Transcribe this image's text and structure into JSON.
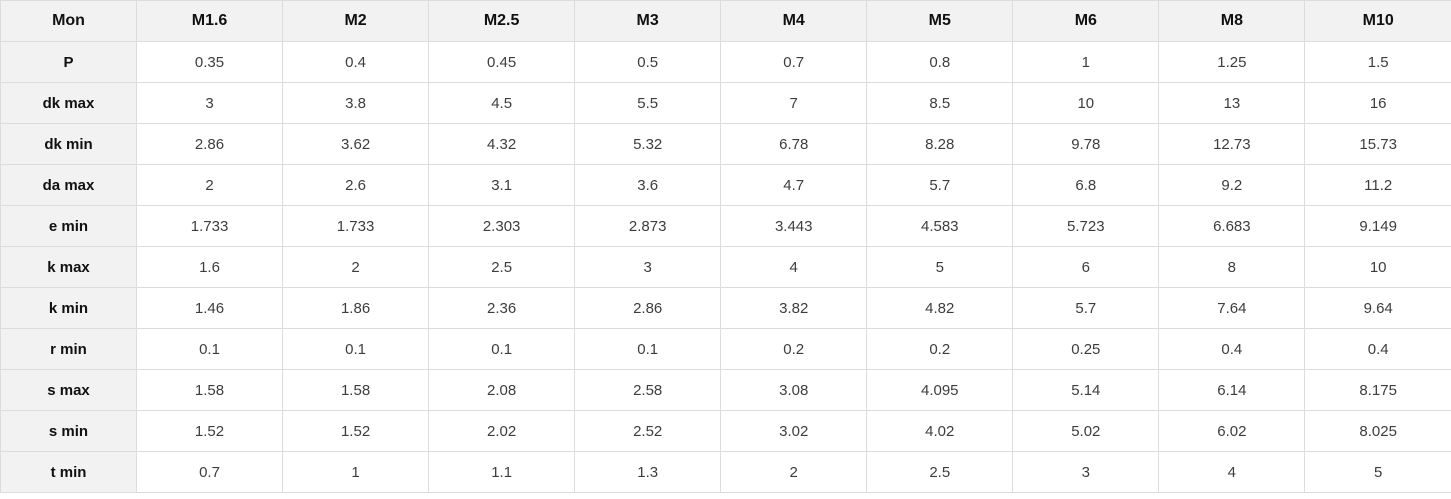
{
  "chart_data": {
    "type": "table",
    "title": "",
    "columns": [
      "Mon",
      "M1.6",
      "M2",
      "M2.5",
      "M3",
      "M4",
      "M5",
      "M6",
      "M8",
      "M10"
    ],
    "rows": [
      {
        "label": "P",
        "values": [
          "0.35",
          "0.4",
          "0.45",
          "0.5",
          "0.7",
          "0.8",
          "1",
          "1.25",
          "1.5"
        ]
      },
      {
        "label": "dk max",
        "values": [
          "3",
          "3.8",
          "4.5",
          "5.5",
          "7",
          "8.5",
          "10",
          "13",
          "16"
        ]
      },
      {
        "label": "dk min",
        "values": [
          "2.86",
          "3.62",
          "4.32",
          "5.32",
          "6.78",
          "8.28",
          "9.78",
          "12.73",
          "15.73"
        ]
      },
      {
        "label": "da max",
        "values": [
          "2",
          "2.6",
          "3.1",
          "3.6",
          "4.7",
          "5.7",
          "6.8",
          "9.2",
          "11.2"
        ]
      },
      {
        "label": "e min",
        "values": [
          "1.733",
          "1.733",
          "2.303",
          "2.873",
          "3.443",
          "4.583",
          "5.723",
          "6.683",
          "9.149"
        ]
      },
      {
        "label": "k max",
        "values": [
          "1.6",
          "2",
          "2.5",
          "3",
          "4",
          "5",
          "6",
          "8",
          "10"
        ]
      },
      {
        "label": "k min",
        "values": [
          "1.46",
          "1.86",
          "2.36",
          "2.86",
          "3.82",
          "4.82",
          "5.7",
          "7.64",
          "9.64"
        ]
      },
      {
        "label": "r min",
        "values": [
          "0.1",
          "0.1",
          "0.1",
          "0.1",
          "0.2",
          "0.2",
          "0.25",
          "0.4",
          "0.4"
        ]
      },
      {
        "label": "s max",
        "values": [
          "1.58",
          "1.58",
          "2.08",
          "2.58",
          "3.08",
          "4.095",
          "5.14",
          "6.14",
          "8.175"
        ]
      },
      {
        "label": "s min",
        "values": [
          "1.52",
          "1.52",
          "2.02",
          "2.52",
          "3.02",
          "4.02",
          "5.02",
          "6.02",
          "8.025"
        ]
      },
      {
        "label": "t min",
        "values": [
          "0.7",
          "1",
          "1.1",
          "1.3",
          "2",
          "2.5",
          "3",
          "4",
          "5"
        ]
      }
    ]
  },
  "colors": {
    "header_bg": "#f2f2f2",
    "border": "#dcdcdc",
    "header_text": "#111111",
    "cell_text": "#3d3d3d"
  }
}
